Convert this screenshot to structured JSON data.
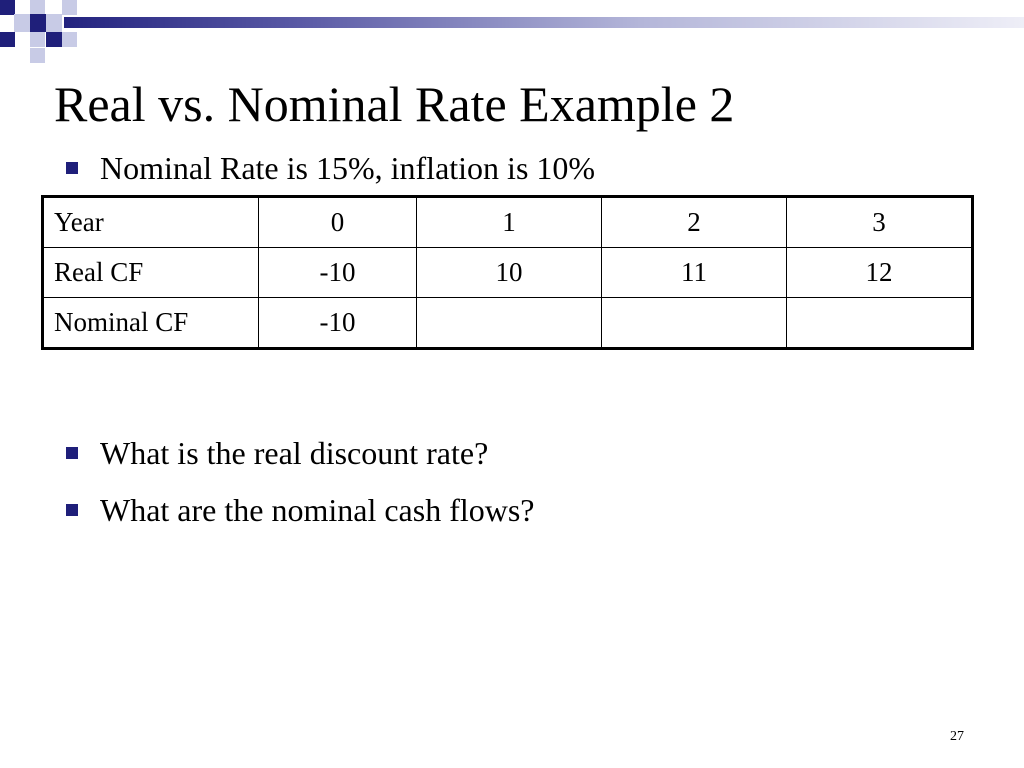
{
  "slide": {
    "title": "Real vs. Nominal Rate Example 2",
    "bullets": [
      "Nominal Rate is 15%, inflation is 10%",
      "What is the real discount rate?",
      "What are the nominal cash flows?"
    ],
    "page_number": "27"
  },
  "table": {
    "header": [
      "Year",
      "0",
      "1",
      "2",
      "3"
    ],
    "rows": [
      [
        "Real CF",
        "-10",
        "10",
        "11",
        "12"
      ],
      [
        "Nominal CF",
        "-10",
        "",
        "",
        ""
      ]
    ]
  },
  "colors": {
    "accent_navy": "#1f1f7a",
    "accent_light": "#c8cbe6"
  }
}
